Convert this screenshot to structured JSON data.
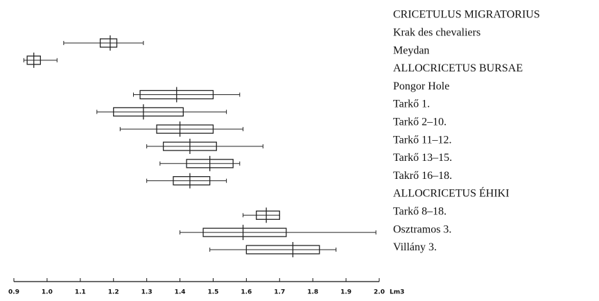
{
  "chart_data": {
    "type": "box",
    "categories": [
      "CRICETULUS MIGRATORIUS",
      "Krak des chevaliers",
      "Meydan",
      "ALLOCRICETUS BURSAE",
      "Pongor Hole",
      "Tarkő 1.",
      "Tarkő 2–10.",
      "Tarkő 11–12.",
      "Tarkő 13–15.",
      "Takrő 16–18.",
      "ALLOCRICETUS ÉHIKI",
      "Tarkő 8–18.",
      "Osztramos 3.",
      "Villány 3."
    ],
    "min": [
      null,
      1.05,
      0.93,
      null,
      1.26,
      1.15,
      1.22,
      1.3,
      1.34,
      1.3,
      null,
      1.59,
      1.4,
      1.49
    ],
    "q1": [
      null,
      1.16,
      0.94,
      null,
      1.28,
      1.2,
      1.33,
      1.35,
      1.42,
      1.38,
      null,
      1.63,
      1.47,
      1.6
    ],
    "median": [
      null,
      1.19,
      0.96,
      null,
      1.39,
      1.29,
      1.4,
      1.43,
      1.49,
      1.43,
      null,
      1.66,
      1.59,
      1.74
    ],
    "q3": [
      null,
      1.21,
      0.98,
      null,
      1.5,
      1.41,
      1.5,
      1.51,
      1.56,
      1.49,
      null,
      1.7,
      1.72,
      1.82
    ],
    "max": [
      null,
      1.29,
      1.03,
      null,
      1.58,
      1.54,
      1.59,
      1.65,
      1.58,
      1.54,
      null,
      1.7,
      1.99,
      1.87
    ],
    "color": "#222",
    "xlabel": "Lm3",
    "xlim": [
      0.9,
      2.0
    ],
    "xticks": [
      0.9,
      {
        "value": 1,
        "label": "1.0"
      },
      1.1,
      1.2,
      1.3,
      1.4,
      1.5,
      1.6,
      1.7,
      1.8,
      1.9,
      {
        "value": 2,
        "label": "2.0"
      }
    ]
  }
}
